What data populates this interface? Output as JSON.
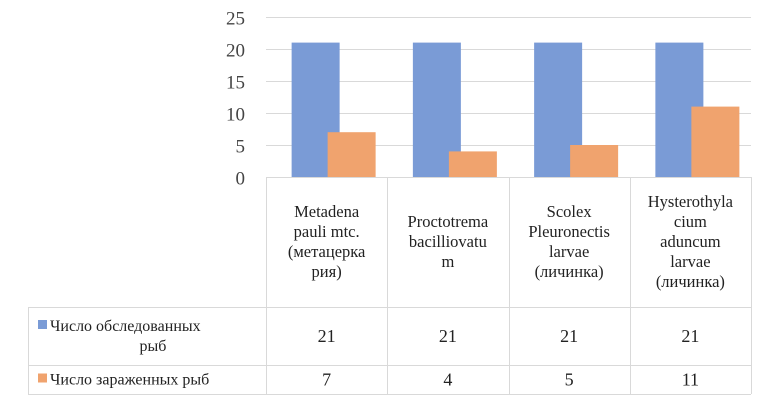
{
  "chart_data": {
    "type": "bar",
    "categories": [
      [
        "Metadena",
        "pauli mtc.",
        "(метацерка",
        "рия)"
      ],
      [
        "Proctotrema",
        "bacilliovatu",
        "m"
      ],
      [
        "Scolex",
        "Pleuronectis",
        "larvae",
        "(личинка)"
      ],
      [
        "Hysterothyla",
        "cium",
        "aduncum",
        "larvae",
        "(личинка)"
      ]
    ],
    "series": [
      {
        "name": [
          "Число обследованных",
          "рыб"
        ],
        "values": [
          21,
          21,
          21,
          21
        ],
        "color": "#7a9bd6"
      },
      {
        "name": [
          "Число зараженных рыб"
        ],
        "values": [
          7,
          4,
          5,
          11
        ],
        "color": "#f0a36e"
      }
    ],
    "y_ticks": [
      "0",
      "5",
      "10",
      "15",
      "20",
      "25"
    ],
    "ylim": [
      0,
      25
    ],
    "grid": true,
    "legend": "data-table"
  }
}
